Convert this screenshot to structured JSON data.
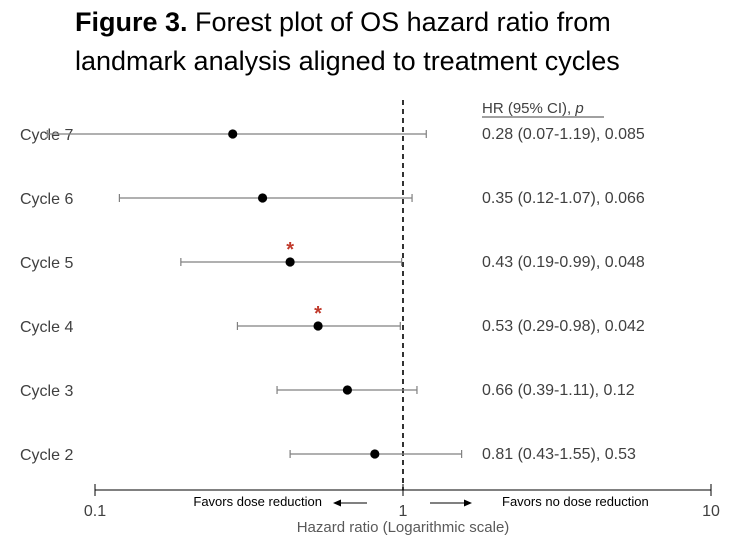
{
  "title": {
    "bold": "Figure 3.",
    "line1_rest": " Forest plot of OS hazard ratio from",
    "line2": "landmark analysis aligned to treatment cycles"
  },
  "colors": {
    "point": "#000000",
    "ci_line": "#808080",
    "reference_line": "#000000",
    "significance": "#c0392b",
    "text": "#404040"
  },
  "chart_data": {
    "type": "forest",
    "xscale": "log",
    "xlim": [
      0.1,
      10
    ],
    "xticks": [
      0.1,
      1,
      10
    ],
    "xtick_labels": [
      "0.1",
      "1",
      "10"
    ],
    "xlabel": "Hazard ratio (Logarithmic scale)",
    "reference_value": 1,
    "column_header_text": "HR (95% CI), ",
    "column_header_italic": "p",
    "favors_left": "Favors dose reduction",
    "favors_right": "Favors no dose reduction",
    "significance_marker": "*",
    "rows": [
      {
        "label": "Cycle 7",
        "hr": 0.28,
        "lo": 0.07,
        "hi": 1.19,
        "text": "0.28 (0.07-1.19), 0.085",
        "significant": false
      },
      {
        "label": "Cycle 6",
        "hr": 0.35,
        "lo": 0.12,
        "hi": 1.07,
        "text": "0.35 (0.12-1.07), 0.066",
        "significant": false
      },
      {
        "label": "Cycle 5",
        "hr": 0.43,
        "lo": 0.19,
        "hi": 0.99,
        "text": "0.43 (0.19-0.99), 0.048",
        "significant": true
      },
      {
        "label": "Cycle 4",
        "hr": 0.53,
        "lo": 0.29,
        "hi": 0.98,
        "text": "0.53 (0.29-0.98), 0.042",
        "significant": true
      },
      {
        "label": "Cycle 3",
        "hr": 0.66,
        "lo": 0.39,
        "hi": 1.11,
        "text": "0.66 (0.39-1.11), 0.12",
        "significant": false
      },
      {
        "label": "Cycle 2",
        "hr": 0.81,
        "lo": 0.43,
        "hi": 1.55,
        "text": "0.81 (0.43-1.55), 0.53",
        "significant": false
      }
    ]
  }
}
